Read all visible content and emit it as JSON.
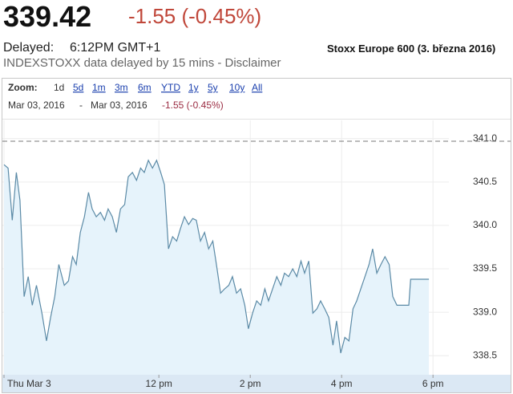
{
  "header": {
    "price": "339.42",
    "change": "-1.55 (-0.45%)",
    "delayed_label": "Delayed:",
    "delayed_time": "6:12PM GMT+1",
    "source_note": "INDEXSTOXX data delayed by 15 mins - Disclaimer",
    "caption": "Stoxx Europe 600 (3. března 2016)"
  },
  "zoom": {
    "label": "Zoom:",
    "selected": "1d",
    "options": [
      "5d",
      "1m",
      "3m",
      "6m",
      "YTD",
      "1y",
      "5y",
      "10y",
      "All"
    ]
  },
  "range": {
    "from": "Mar 03, 2016",
    "separator": "-",
    "to": "Mar 03, 2016",
    "change": "-1.55 (-0.45%)"
  },
  "chart_data": {
    "type": "area",
    "line_color": "#5b8aa6",
    "fill_color": "#e6f3fb",
    "grid": true,
    "reference_line": 340.97,
    "xlim": [
      8.61,
      18.26
    ],
    "ylim": [
      338.28,
      341.21
    ],
    "xticks": [
      {
        "value": 8.61,
        "label": "Thu Mar 3"
      },
      {
        "value": 12,
        "label": "12 pm"
      },
      {
        "value": 14,
        "label": "2 pm"
      },
      {
        "value": 16,
        "label": "4 pm"
      },
      {
        "value": 18,
        "label": "6 pm"
      }
    ],
    "yticks": [
      {
        "value": 341,
        "label": "341.0"
      },
      340.5,
      {
        "value": 340,
        "label": "340.0"
      },
      339.5,
      {
        "value": 339,
        "label": "339.0"
      },
      338.5
    ],
    "x": [
      8.61,
      8.7,
      8.79,
      8.88,
      8.96,
      9.05,
      9.14,
      9.23,
      9.32,
      9.44,
      9.54,
      9.63,
      9.72,
      9.81,
      9.93,
      10.02,
      10.11,
      10.19,
      10.28,
      10.37,
      10.46,
      10.54,
      10.63,
      10.72,
      10.81,
      10.89,
      10.98,
      11.07,
      11.16,
      11.25,
      11.33,
      11.42,
      11.51,
      11.6,
      11.68,
      11.77,
      11.86,
      11.95,
      12.04,
      12.12,
      12.21,
      12.3,
      12.39,
      12.47,
      12.56,
      12.65,
      12.74,
      12.82,
      12.91,
      13.0,
      13.09,
      13.18,
      13.26,
      13.35,
      13.44,
      13.53,
      13.61,
      13.7,
      13.79,
      13.88,
      13.96,
      14.05,
      14.14,
      14.23,
      14.32,
      14.4,
      14.49,
      14.58,
      14.67,
      14.75,
      14.84,
      14.93,
      15.02,
      15.11,
      15.19,
      15.28,
      15.37,
      15.46,
      15.54,
      15.63,
      15.72,
      15.81,
      15.89,
      15.98,
      16.07,
      16.16,
      16.25,
      16.33,
      16.42,
      16.51,
      16.6,
      16.68,
      16.77,
      16.86,
      16.95,
      17.04,
      17.12,
      17.21,
      17.47,
      17.51,
      17.91
    ],
    "values": [
      340.7,
      340.66,
      340.06,
      340.61,
      340.29,
      339.18,
      339.41,
      339.08,
      339.31,
      338.99,
      338.67,
      338.94,
      339.18,
      339.55,
      339.31,
      339.36,
      339.64,
      339.55,
      339.92,
      340.1,
      340.38,
      340.19,
      340.1,
      340.15,
      340.06,
      340.19,
      340.1,
      339.92,
      340.19,
      340.24,
      340.56,
      340.61,
      340.52,
      340.66,
      340.61,
      340.75,
      340.66,
      340.75,
      340.61,
      340.47,
      339.73,
      339.87,
      339.82,
      339.96,
      340.1,
      340.01,
      340.08,
      340.06,
      339.82,
      339.92,
      339.73,
      339.82,
      339.55,
      339.22,
      339.27,
      339.31,
      339.41,
      339.22,
      339.27,
      339.08,
      338.81,
      338.99,
      339.13,
      339.08,
      339.27,
      339.13,
      339.27,
      339.41,
      339.31,
      339.45,
      339.41,
      339.5,
      339.41,
      339.59,
      339.45,
      339.59,
      338.99,
      339.04,
      339.13,
      339.04,
      338.94,
      338.62,
      338.9,
      338.53,
      338.71,
      338.67,
      339.04,
      339.13,
      339.27,
      339.41,
      339.55,
      339.73,
      339.45,
      339.55,
      339.64,
      339.55,
      339.18,
      339.08,
      339.08,
      339.38,
      339.38
    ]
  }
}
